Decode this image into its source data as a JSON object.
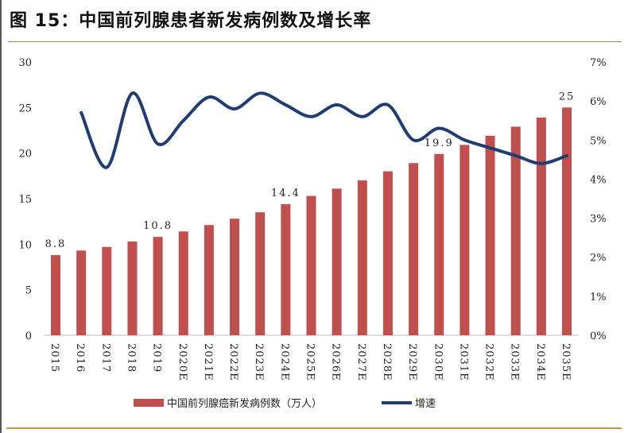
{
  "title": "图 15：中国前列腺患者新发病例数及增长率",
  "chart_data": {
    "type": "bar+line",
    "title": "图 15：中国前列腺患者新发病例数及增长率",
    "categories": [
      "2015",
      "2016",
      "2017",
      "2018",
      "2019",
      "2020E",
      "2021E",
      "2022E",
      "2023E",
      "2024E",
      "2025E",
      "2026E",
      "2027E",
      "2028E",
      "2029E",
      "2030E",
      "2031E",
      "2032E",
      "2033E",
      "2034E",
      "2035E"
    ],
    "series": [
      {
        "name": "中国前列腺癌新发病例数（万人）",
        "type": "bar",
        "axis": "left",
        "color": "#c0504d",
        "values": [
          8.8,
          9.3,
          9.7,
          10.3,
          10.8,
          11.4,
          12.1,
          12.8,
          13.5,
          14.4,
          15.3,
          16.1,
          17.0,
          18.0,
          18.9,
          19.9,
          20.9,
          21.9,
          22.9,
          23.9,
          25
        ]
      },
      {
        "name": "增速",
        "type": "line",
        "axis": "right",
        "color": "#1f3d73",
        "values": [
          null,
          5.7,
          4.3,
          6.2,
          4.9,
          5.5,
          6.1,
          5.8,
          6.2,
          5.9,
          5.6,
          5.9,
          5.6,
          5.9,
          5.0,
          5.3,
          5.0,
          4.8,
          4.6,
          4.4,
          4.6
        ]
      }
    ],
    "data_labels": [
      {
        "category": "2015",
        "text": "8.8"
      },
      {
        "category": "2019",
        "text": "10.8"
      },
      {
        "category": "2024E",
        "text": "14.4"
      },
      {
        "category": "2030E",
        "text": "19.9"
      },
      {
        "category": "2035E",
        "text": "25"
      }
    ],
    "left_axis": {
      "ylim": [
        0,
        30
      ],
      "ticks": [
        "0",
        "5",
        "10",
        "15",
        "20",
        "25",
        "30"
      ]
    },
    "right_axis": {
      "ylim": [
        0,
        7
      ],
      "ticks": [
        "0%",
        "1%",
        "2%",
        "3%",
        "4%",
        "5%",
        "6%",
        "7%"
      ]
    },
    "grid": false,
    "legend_position": "bottom"
  }
}
